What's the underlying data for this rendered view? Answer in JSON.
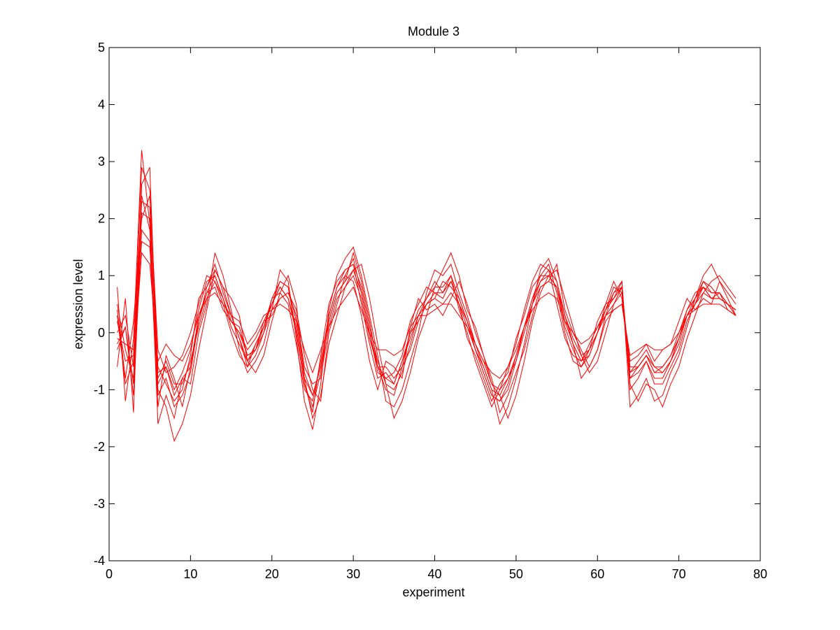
{
  "chart_data": {
    "type": "line",
    "title": "Module 3",
    "xlabel": "experiment",
    "ylabel": "expression level",
    "xlim": [
      0,
      80
    ],
    "ylim": [
      -4,
      5
    ],
    "xticks": [
      "0",
      "10",
      "20",
      "30",
      "40",
      "50",
      "60",
      "70",
      "80"
    ],
    "yticks": [
      "5",
      "4",
      "3",
      "2",
      "1",
      "0",
      "-1",
      "-2",
      "-3",
      "-4"
    ],
    "grid": false,
    "legend": "none",
    "line_color": "#ff0000",
    "x_start": 1,
    "x_end": 77,
    "series": [
      {
        "values": [
          0.5,
          -0.3,
          -0.8,
          2.3,
          2.2,
          -0.9,
          -0.6,
          -1.0,
          -0.7,
          -0.3,
          0.4,
          0.9,
          1.0,
          0.6,
          0.1,
          -0.2,
          -0.5,
          -0.3,
          0.1,
          0.5,
          0.8,
          0.6,
          0.0,
          -0.9,
          -1.4,
          -0.4,
          0.5,
          0.9,
          1.1,
          1.2,
          0.5,
          -0.2,
          -0.8,
          -0.7,
          -0.9,
          -0.5,
          0.0,
          0.4,
          0.6,
          0.9,
          0.7,
          1.0,
          0.4,
          0.0,
          -0.5,
          -0.9,
          -1.3,
          -1.0,
          -0.6,
          -0.2,
          0.4,
          0.9,
          1.2,
          1.1,
          0.5,
          -0.1,
          -0.4,
          -0.5,
          -0.2,
          0.1,
          0.4,
          0.8,
          0.7,
          -0.8,
          -0.6,
          -0.4,
          -0.7,
          -0.6,
          -0.4,
          0.0,
          0.4,
          0.7,
          0.8,
          0.6,
          0.7,
          0.4,
          0.3
        ]
      },
      {
        "values": [
          0.2,
          -0.5,
          -0.4,
          2.9,
          2.5,
          -0.6,
          -0.9,
          -1.2,
          -1.0,
          -0.4,
          0.6,
          0.8,
          1.2,
          0.7,
          0.3,
          -0.1,
          -0.6,
          -0.4,
          0.0,
          0.6,
          0.9,
          0.8,
          0.2,
          -0.7,
          -1.1,
          -0.6,
          0.2,
          0.7,
          0.9,
          1.4,
          0.9,
          0.2,
          -0.6,
          -1.0,
          -1.1,
          -0.6,
          -0.3,
          0.2,
          0.5,
          0.6,
          0.9,
          0.8,
          0.6,
          0.2,
          -0.3,
          -0.7,
          -1.1,
          -1.2,
          -0.9,
          -0.4,
          0.1,
          0.6,
          1.0,
          1.0,
          0.8,
          0.1,
          -0.3,
          -0.6,
          -0.4,
          0.0,
          0.5,
          0.6,
          0.9,
          -1.0,
          -0.8,
          -0.5,
          -0.9,
          -0.9,
          -0.6,
          -0.3,
          0.2,
          0.5,
          0.9,
          0.8,
          0.6,
          0.5,
          0.4
        ]
      },
      {
        "values": [
          -0.3,
          0.1,
          -1.1,
          1.8,
          1.6,
          -1.3,
          -0.4,
          -0.8,
          -1.3,
          -0.6,
          0.2,
          0.7,
          0.8,
          0.4,
          0.2,
          0.0,
          -0.3,
          -0.1,
          0.2,
          0.3,
          0.6,
          0.7,
          0.4,
          -0.4,
          -1.0,
          -1.2,
          0.0,
          0.5,
          1.0,
          0.9,
          0.3,
          -0.5,
          -1.0,
          -0.5,
          -0.6,
          -0.8,
          0.1,
          0.6,
          0.4,
          0.5,
          0.3,
          0.6,
          0.9,
          0.5,
          0.0,
          -0.4,
          -0.8,
          -1.4,
          -1.1,
          -0.7,
          -0.3,
          0.3,
          0.8,
          0.9,
          1.2,
          0.4,
          0.0,
          -0.3,
          -0.6,
          -0.3,
          0.2,
          0.4,
          0.5,
          -0.5,
          -0.4,
          -0.2,
          -0.5,
          -0.3,
          -0.2,
          0.2,
          0.6,
          0.4,
          0.6,
          0.5,
          0.9,
          0.7,
          0.5
        ]
      },
      {
        "values": [
          0.8,
          -1.2,
          -0.1,
          3.2,
          1.9,
          -1.6,
          -1.1,
          -1.5,
          -0.8,
          -0.9,
          0.0,
          0.5,
          1.4,
          1.0,
          0.4,
          -0.3,
          -0.7,
          -0.5,
          -0.2,
          0.4,
          1.1,
          0.9,
          -0.1,
          -1.2,
          -1.7,
          -0.9,
          0.4,
          1.0,
          1.3,
          1.5,
          1.0,
          0.3,
          -0.4,
          -1.2,
          -1.3,
          -1.0,
          -0.5,
          0.0,
          0.7,
          1.1,
          1.0,
          1.2,
          0.7,
          0.3,
          -0.2,
          -0.6,
          -1.0,
          -1.6,
          -1.3,
          -0.8,
          -0.2,
          0.5,
          1.1,
          1.3,
          0.9,
          0.3,
          -0.2,
          -0.8,
          -0.6,
          -0.3,
          0.3,
          0.7,
          0.9,
          -1.3,
          -1.1,
          -0.8,
          -1.2,
          -1.1,
          -0.7,
          -0.4,
          0.1,
          0.6,
          1.0,
          1.2,
          0.9,
          0.6,
          0.3
        ]
      },
      {
        "values": [
          0.0,
          0.3,
          -0.6,
          1.4,
          1.2,
          -0.5,
          -0.2,
          -0.4,
          -0.5,
          -0.2,
          0.3,
          0.6,
          0.7,
          0.5,
          0.3,
          0.2,
          -0.2,
          0.0,
          0.3,
          0.4,
          0.5,
          0.4,
          0.2,
          -0.3,
          -0.7,
          -0.3,
          0.1,
          0.4,
          0.6,
          0.8,
          0.4,
          0.0,
          -0.3,
          -0.3,
          -0.4,
          -0.3,
          0.1,
          0.3,
          0.3,
          0.4,
          0.5,
          0.5,
          0.3,
          0.1,
          -0.2,
          -0.5,
          -0.7,
          -0.8,
          -0.6,
          -0.3,
          0.1,
          0.4,
          0.6,
          0.7,
          0.6,
          0.2,
          0.0,
          -0.2,
          -0.1,
          0.1,
          0.3,
          0.4,
          0.5,
          -0.4,
          -0.3,
          -0.2,
          -0.3,
          -0.3,
          -0.2,
          0.0,
          0.3,
          0.4,
          0.5,
          0.5,
          0.5,
          0.4,
          0.3
        ]
      },
      {
        "values": [
          -0.6,
          0.6,
          -1.4,
          2.6,
          2.9,
          -1.0,
          -1.3,
          -1.9,
          -1.6,
          -1.1,
          -0.3,
          0.4,
          1.1,
          0.8,
          0.6,
          0.3,
          -0.5,
          -0.7,
          -0.4,
          0.2,
          0.7,
          1.0,
          0.5,
          -0.8,
          -1.5,
          -1.1,
          -0.2,
          0.3,
          0.8,
          1.1,
          1.2,
          0.6,
          -0.2,
          -0.9,
          -1.5,
          -1.2,
          -0.7,
          -0.1,
          0.3,
          0.8,
          1.1,
          1.4,
          1.0,
          0.4,
          0.1,
          -0.4,
          -0.9,
          -1.1,
          -1.5,
          -1.1,
          -0.5,
          0.2,
          0.7,
          1.0,
          1.1,
          0.6,
          0.1,
          -0.4,
          -0.7,
          -0.5,
          0.0,
          0.5,
          0.8,
          -0.9,
          -1.2,
          -0.9,
          -1.0,
          -1.3,
          -0.9,
          -0.6,
          -0.1,
          0.3,
          0.7,
          0.9,
          1.0,
          0.8,
          0.6
        ]
      },
      {
        "values": [
          0.4,
          -0.8,
          0.2,
          2.0,
          2.4,
          -0.3,
          -0.7,
          -0.6,
          -0.4,
          0.0,
          0.5,
          1.0,
          0.9,
          0.5,
          0.0,
          -0.4,
          -0.6,
          -0.2,
          0.1,
          0.6,
          0.7,
          0.5,
          -0.2,
          -1.0,
          -1.2,
          -0.5,
          0.3,
          0.8,
          1.0,
          1.3,
          0.7,
          0.0,
          -0.7,
          -0.8,
          -0.7,
          -0.4,
          0.2,
          0.5,
          0.8,
          0.7,
          0.6,
          0.9,
          0.5,
          -0.1,
          -0.4,
          -0.8,
          -1.2,
          -0.9,
          -0.7,
          -0.1,
          0.3,
          0.8,
          1.0,
          1.2,
          0.7,
          0.0,
          -0.5,
          -0.6,
          -0.3,
          0.2,
          0.5,
          0.9,
          0.6,
          -0.7,
          -0.5,
          -0.3,
          -0.6,
          -0.7,
          -0.5,
          -0.1,
          0.4,
          0.6,
          0.9,
          0.7,
          0.7,
          0.5,
          0.4
        ]
      },
      {
        "values": [
          -0.1,
          -0.2,
          -0.3,
          1.6,
          1.5,
          -0.8,
          -0.5,
          -0.9,
          -0.9,
          -0.5,
          0.1,
          0.6,
          0.9,
          0.6,
          0.2,
          0.1,
          -0.4,
          -0.3,
          0.0,
          0.4,
          0.6,
          0.7,
          0.3,
          -0.6,
          -0.9,
          -0.8,
          0.1,
          0.6,
          0.8,
          1.0,
          0.6,
          -0.1,
          -0.6,
          -0.6,
          -0.8,
          -0.6,
          0.0,
          0.2,
          0.5,
          0.6,
          0.5,
          0.7,
          0.5,
          0.2,
          -0.2,
          -0.5,
          -0.9,
          -1.0,
          -0.8,
          -0.5,
          0.0,
          0.5,
          0.8,
          0.9,
          0.8,
          0.3,
          -0.1,
          -0.4,
          -0.3,
          0.0,
          0.3,
          0.5,
          0.7,
          -0.6,
          -0.6,
          -0.4,
          -0.6,
          -0.6,
          -0.4,
          -0.1,
          0.3,
          0.5,
          0.7,
          0.6,
          0.6,
          0.5,
          0.3
        ]
      },
      {
        "values": [
          0.3,
          -0.9,
          -0.5,
          2.4,
          1.8,
          -1.1,
          -0.8,
          -1.3,
          -1.1,
          -0.7,
          0.2,
          0.8,
          1.1,
          0.8,
          0.3,
          -0.1,
          -0.5,
          -0.2,
          0.1,
          0.5,
          0.9,
          0.8,
          0.0,
          -0.9,
          -1.3,
          -0.7,
          0.3,
          0.8,
          1.1,
          1.2,
          0.8,
          0.1,
          -0.5,
          -0.9,
          -1.0,
          -0.7,
          -0.2,
          0.3,
          0.6,
          0.8,
          0.8,
          1.0,
          0.6,
          0.2,
          -0.3,
          -0.7,
          -1.1,
          -1.2,
          -1.0,
          -0.5,
          0.1,
          0.6,
          0.9,
          1.1,
          0.9,
          0.3,
          -0.2,
          -0.5,
          -0.4,
          0.0,
          0.4,
          0.7,
          0.8,
          -0.8,
          -0.7,
          -0.5,
          -0.8,
          -0.8,
          -0.5,
          -0.2,
          0.3,
          0.6,
          0.8,
          0.7,
          0.7,
          0.5,
          0.4
        ]
      },
      {
        "values": [
          -0.2,
          0.1,
          -0.9,
          2.1,
          2.0,
          -0.7,
          -0.6,
          -1.1,
          -0.8,
          -0.6,
          0.3,
          0.7,
          1.0,
          0.6,
          0.2,
          0.0,
          -0.4,
          -0.3,
          0.2,
          0.5,
          0.8,
          0.6,
          0.1,
          -0.8,
          -1.1,
          -0.6,
          0.2,
          0.7,
          0.9,
          1.1,
          0.7,
          0.0,
          -0.6,
          -0.8,
          -0.9,
          -0.5,
          -0.1,
          0.3,
          0.5,
          0.7,
          0.7,
          0.9,
          0.5,
          0.1,
          -0.3,
          -0.6,
          -1.0,
          -1.1,
          -0.8,
          -0.4,
          0.1,
          0.5,
          0.9,
          1.0,
          0.8,
          0.2,
          -0.2,
          -0.5,
          -0.3,
          0.0,
          0.4,
          0.6,
          0.8,
          -0.7,
          -0.6,
          -0.4,
          -0.7,
          -0.7,
          -0.5,
          -0.1,
          0.3,
          0.5,
          0.8,
          0.6,
          0.6,
          0.5,
          0.3
        ]
      }
    ]
  }
}
